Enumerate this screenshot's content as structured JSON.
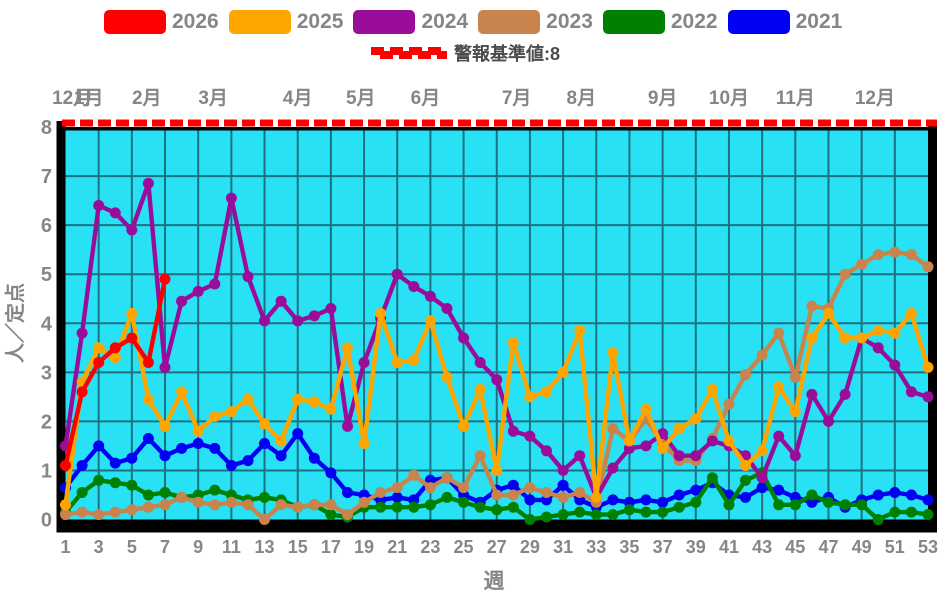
{
  "colors": {
    "plot_bg": "#28e1f5",
    "grid": "#1d7080",
    "axis_border": "#000000",
    "tick_text": "#868686",
    "threshold_red": "#ff0000"
  },
  "legend": {
    "items": [
      {
        "label": "2026",
        "color": "#ff0000"
      },
      {
        "label": "2025",
        "color": "#ffa500"
      },
      {
        "label": "2024",
        "color": "#9a0d9a"
      },
      {
        "label": "2023",
        "color": "#c8844c"
      },
      {
        "label": "2022",
        "color": "#008000"
      },
      {
        "label": "2021",
        "color": "#0000f5"
      }
    ]
  },
  "threshold": {
    "label": "警報基準値:8",
    "value": 8,
    "color": "#ff0000"
  },
  "axes": {
    "y_label": "人／定点",
    "x_label": "週",
    "y_ticks": [
      0,
      1,
      2,
      3,
      4,
      5,
      6,
      7,
      8
    ],
    "x_ticks": [
      1,
      3,
      5,
      7,
      9,
      11,
      13,
      15,
      17,
      19,
      21,
      23,
      25,
      27,
      29,
      31,
      33,
      35,
      37,
      39,
      41,
      43,
      45,
      47,
      49,
      51,
      53
    ],
    "months": [
      {
        "label": "12月",
        "week": 1.4
      },
      {
        "label": "1月",
        "week": 2.4
      },
      {
        "label": "2月",
        "week": 5.9
      },
      {
        "label": "3月",
        "week": 9.9
      },
      {
        "label": "4月",
        "week": 15.0
      },
      {
        "label": "5月",
        "week": 18.8
      },
      {
        "label": "6月",
        "week": 22.7
      },
      {
        "label": "7月",
        "week": 28.2
      },
      {
        "label": "8月",
        "week": 32.1
      },
      {
        "label": "9月",
        "week": 37.0
      },
      {
        "label": "10月",
        "week": 41.0
      },
      {
        "label": "11月",
        "week": 45.0
      },
      {
        "label": "12月",
        "week": 49.8
      }
    ]
  },
  "chart_data": {
    "type": "line",
    "title": "",
    "xlabel": "週",
    "ylabel": "人／定点",
    "x_range": [
      1,
      53
    ],
    "ylim": [
      0,
      8
    ],
    "grid": true,
    "legend_position": "top",
    "threshold_line": {
      "value": 8,
      "style": "dashed",
      "color": "#ff0000",
      "label": "警報基準値:8"
    },
    "x": [
      1,
      2,
      3,
      4,
      5,
      6,
      7,
      8,
      9,
      10,
      11,
      12,
      13,
      14,
      15,
      16,
      17,
      18,
      19,
      20,
      21,
      22,
      23,
      24,
      25,
      26,
      27,
      28,
      29,
      30,
      31,
      32,
      33,
      34,
      35,
      36,
      37,
      38,
      39,
      40,
      41,
      42,
      43,
      44,
      45,
      46,
      47,
      48,
      49,
      50,
      51,
      52,
      53
    ],
    "series": [
      {
        "name": "2021",
        "color": "#0000f5",
        "values": [
          0.65,
          1.1,
          1.5,
          1.15,
          1.25,
          1.65,
          1.3,
          1.45,
          1.55,
          1.45,
          1.1,
          1.2,
          1.55,
          1.3,
          1.75,
          1.25,
          0.95,
          0.55,
          0.5,
          0.4,
          0.45,
          0.4,
          0.8,
          0.85,
          0.5,
          0.35,
          0.6,
          0.7,
          0.4,
          0.4,
          0.7,
          0.4,
          0.25,
          0.4,
          0.35,
          0.4,
          0.35,
          0.5,
          0.6,
          0.75,
          0.5,
          0.45,
          0.65,
          0.6,
          0.45,
          0.35,
          0.45,
          0.25,
          0.4,
          0.5,
          0.55,
          0.5,
          0.4
        ]
      },
      {
        "name": "2022",
        "color": "#008000",
        "values": [
          0.15,
          0.55,
          0.8,
          0.75,
          0.7,
          0.5,
          0.55,
          0.45,
          0.5,
          0.6,
          0.5,
          0.4,
          0.45,
          0.4,
          0.25,
          0.3,
          0.1,
          0.05,
          0.25,
          0.25,
          0.25,
          0.25,
          0.3,
          0.45,
          0.35,
          0.25,
          0.2,
          0.25,
          0.0,
          0.05,
          0.1,
          0.15,
          0.1,
          0.1,
          0.2,
          0.15,
          0.15,
          0.25,
          0.35,
          0.85,
          0.3,
          0.8,
          0.95,
          0.3,
          0.3,
          0.5,
          0.35,
          0.3,
          0.3,
          0.0,
          0.15,
          0.15,
          0.1
        ]
      },
      {
        "name": "2023",
        "color": "#c8844c",
        "values": [
          0.1,
          0.15,
          0.1,
          0.15,
          0.2,
          0.25,
          0.3,
          0.45,
          0.35,
          0.3,
          0.35,
          0.3,
          0.0,
          0.3,
          0.25,
          0.3,
          0.3,
          0.1,
          0.35,
          0.55,
          0.65,
          0.9,
          0.65,
          0.85,
          0.65,
          1.3,
          0.5,
          0.5,
          0.65,
          0.55,
          0.45,
          0.55,
          0.35,
          1.85,
          1.6,
          2.05,
          1.55,
          1.2,
          1.2,
          1.65,
          2.35,
          2.95,
          3.35,
          3.8,
          2.9,
          4.35,
          4.3,
          5.0,
          5.2,
          5.4,
          5.45,
          5.4,
          5.15
        ]
      },
      {
        "name": "2024",
        "color": "#9a0d9a",
        "values": [
          1.5,
          3.8,
          6.4,
          6.25,
          5.9,
          6.85,
          3.1,
          4.45,
          4.65,
          4.8,
          6.55,
          4.95,
          4.05,
          4.45,
          4.05,
          4.15,
          4.3,
          1.9,
          3.2,
          4.1,
          5.0,
          4.75,
          4.55,
          4.3,
          3.7,
          3.2,
          2.85,
          1.8,
          1.7,
          1.4,
          1.0,
          1.3,
          0.45,
          1.05,
          1.45,
          1.5,
          1.75,
          1.3,
          1.3,
          1.6,
          1.5,
          1.3,
          0.85,
          1.7,
          1.3,
          2.55,
          2.0,
          2.55,
          3.7,
          3.5,
          3.15,
          2.6,
          2.5
        ]
      },
      {
        "name": "2025",
        "color": "#ffa500",
        "values": [
          0.3,
          2.8,
          3.5,
          3.3,
          4.2,
          2.45,
          1.9,
          2.6,
          1.8,
          2.1,
          2.2,
          2.45,
          1.95,
          1.6,
          2.45,
          2.4,
          2.25,
          3.5,
          1.55,
          4.2,
          3.2,
          3.25,
          4.05,
          2.9,
          1.9,
          2.65,
          1.0,
          3.6,
          2.5,
          2.6,
          3.0,
          3.85,
          0.45,
          3.4,
          1.6,
          2.25,
          1.45,
          1.85,
          2.05,
          2.65,
          1.6,
          1.1,
          1.4,
          2.7,
          2.2,
          3.7,
          4.2,
          3.7,
          3.7,
          3.85,
          3.8,
          4.2,
          3.1
        ]
      },
      {
        "name": "2026",
        "color": "#ff0000",
        "values": [
          1.1,
          2.6,
          3.2,
          3.5,
          3.7,
          3.2,
          4.9,
          null,
          null,
          null,
          null,
          null,
          null,
          null,
          null,
          null,
          null,
          null,
          null,
          null,
          null,
          null,
          null,
          null,
          null,
          null,
          null,
          null,
          null,
          null,
          null,
          null,
          null,
          null,
          null,
          null,
          null,
          null,
          null,
          null,
          null,
          null,
          null,
          null,
          null,
          null,
          null,
          null,
          null,
          null,
          null,
          null,
          null
        ]
      }
    ]
  }
}
